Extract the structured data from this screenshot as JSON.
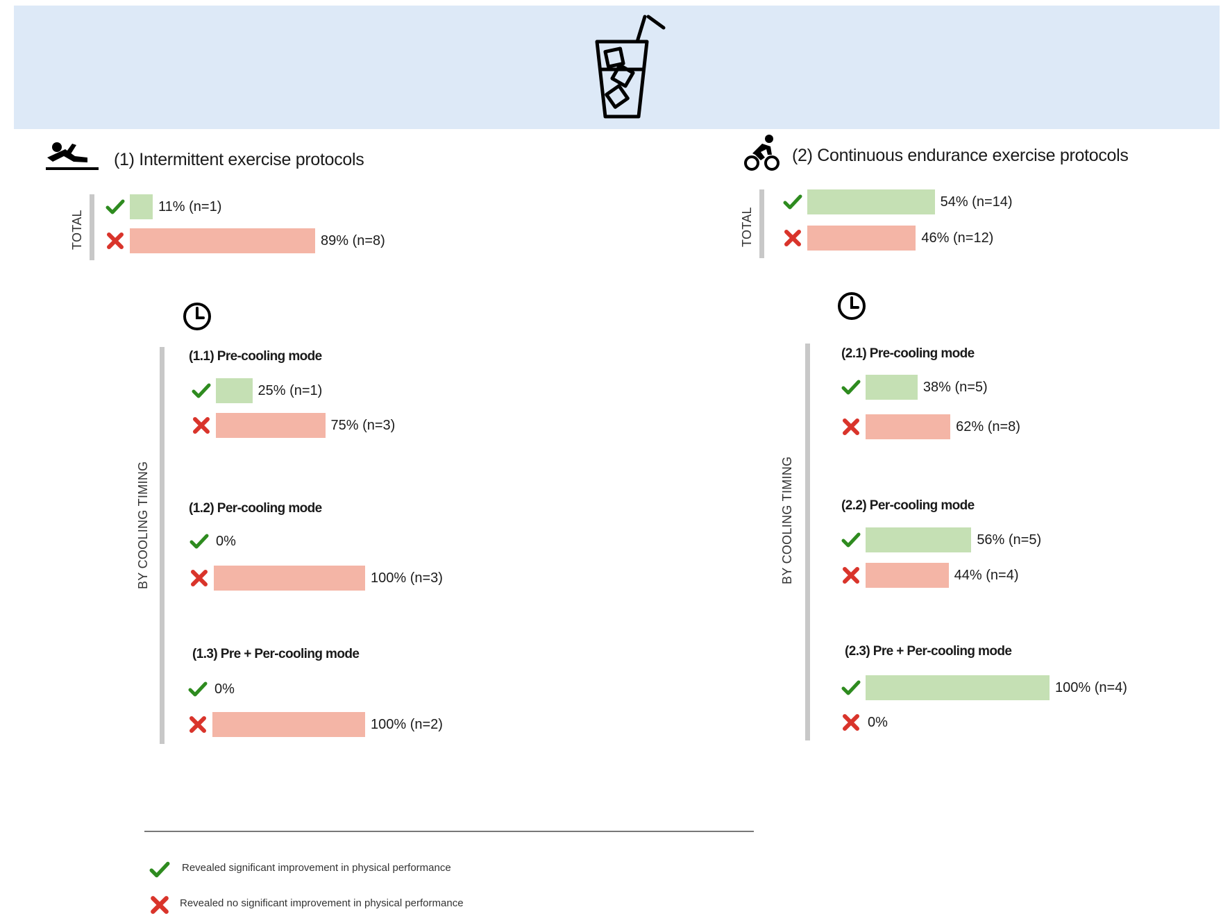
{
  "banner": {
    "icon": "iced-drink-icon"
  },
  "colors": {
    "improved": "#c5e0b4",
    "not_improved": "#f4b5a6",
    "check": "#2e8b1f",
    "cross": "#d9342b"
  },
  "left": {
    "title": "(1) Intermittent exercise protocols",
    "icon": "athlete-push-off-icon",
    "total_label": "TOTAL",
    "timing_label": "BY COOLING TIMING",
    "total": [
      {
        "kind": "improved",
        "percent": 11,
        "label": "11% (n=1)"
      },
      {
        "kind": "not_improved",
        "percent": 89,
        "label": "89% (n=8)"
      }
    ],
    "groups": [
      {
        "title": "(1.1) Pre-cooling mode",
        "rows": [
          {
            "kind": "improved",
            "percent": 25,
            "label": "25% (n=1)"
          },
          {
            "kind": "not_improved",
            "percent": 75,
            "label": "75% (n=3)"
          }
        ]
      },
      {
        "title": "(1.2) Per-cooling mode",
        "rows": [
          {
            "kind": "improved",
            "percent": 0,
            "label": "0%"
          },
          {
            "kind": "not_improved",
            "percent": 100,
            "label": "100% (n=3)"
          }
        ]
      },
      {
        "title": "(1.3) Pre + Per-cooling mode",
        "rows": [
          {
            "kind": "improved",
            "percent": 0,
            "label": "0%"
          },
          {
            "kind": "not_improved",
            "percent": 100,
            "label": "100% (n=2)"
          }
        ]
      }
    ]
  },
  "right": {
    "title": "(2) Continuous endurance exercise protocols",
    "icon": "cyclist-icon",
    "total_label": "TOTAL",
    "timing_label": "BY COOLING TIMING",
    "total": [
      {
        "kind": "improved",
        "percent": 54,
        "label": "54% (n=14)"
      },
      {
        "kind": "not_improved",
        "percent": 46,
        "label": "46% (n=12)"
      }
    ],
    "groups": [
      {
        "title": "(2.1) Pre-cooling mode",
        "rows": [
          {
            "kind": "improved",
            "percent": 38,
            "label": "38% (n=5)"
          },
          {
            "kind": "not_improved",
            "percent": 62,
            "label": "62% (n=8)"
          }
        ]
      },
      {
        "title": "(2.2) Per-cooling mode",
        "rows": [
          {
            "kind": "improved",
            "percent": 56,
            "label": "56% (n=5)"
          },
          {
            "kind": "not_improved",
            "percent": 44,
            "label": "44% (n=4)"
          }
        ]
      },
      {
        "title": "(2.3) Pre + Per-cooling mode",
        "rows": [
          {
            "kind": "improved",
            "percent": 100,
            "label": "100% (n=4)"
          },
          {
            "kind": "not_improved",
            "percent": 0,
            "label": "0%"
          }
        ]
      }
    ]
  },
  "legend": {
    "improved": "Revealed significant improvement in physical performance",
    "not_improved": "Revealed no significant improvement in physical performance"
  },
  "chart_data": [
    {
      "type": "bar",
      "title": "(1) Intermittent exercise protocols — TOTAL",
      "categories": [
        "Improvement",
        "No improvement"
      ],
      "values": [
        11,
        89
      ],
      "n": [
        1,
        8
      ],
      "unit": "%"
    },
    {
      "type": "bar",
      "title": "(1.1) Pre-cooling mode",
      "categories": [
        "Improvement",
        "No improvement"
      ],
      "values": [
        25,
        75
      ],
      "n": [
        1,
        3
      ],
      "unit": "%"
    },
    {
      "type": "bar",
      "title": "(1.2) Per-cooling mode",
      "categories": [
        "Improvement",
        "No improvement"
      ],
      "values": [
        0,
        100
      ],
      "n": [
        0,
        3
      ],
      "unit": "%"
    },
    {
      "type": "bar",
      "title": "(1.3) Pre + Per-cooling mode",
      "categories": [
        "Improvement",
        "No improvement"
      ],
      "values": [
        0,
        100
      ],
      "n": [
        0,
        2
      ],
      "unit": "%"
    },
    {
      "type": "bar",
      "title": "(2) Continuous endurance exercise protocols — TOTAL",
      "categories": [
        "Improvement",
        "No improvement"
      ],
      "values": [
        54,
        46
      ],
      "n": [
        14,
        12
      ],
      "unit": "%"
    },
    {
      "type": "bar",
      "title": "(2.1) Pre-cooling mode",
      "categories": [
        "Improvement",
        "No improvement"
      ],
      "values": [
        38,
        62
      ],
      "n": [
        5,
        8
      ],
      "unit": "%"
    },
    {
      "type": "bar",
      "title": "(2.2) Per-cooling mode",
      "categories": [
        "Improvement",
        "No improvement"
      ],
      "values": [
        56,
        44
      ],
      "n": [
        5,
        4
      ],
      "unit": "%"
    },
    {
      "type": "bar",
      "title": "(2.3) Pre + Per-cooling mode",
      "categories": [
        "Improvement",
        "No improvement"
      ],
      "values": [
        100,
        0
      ],
      "n": [
        4,
        0
      ],
      "unit": "%"
    }
  ]
}
